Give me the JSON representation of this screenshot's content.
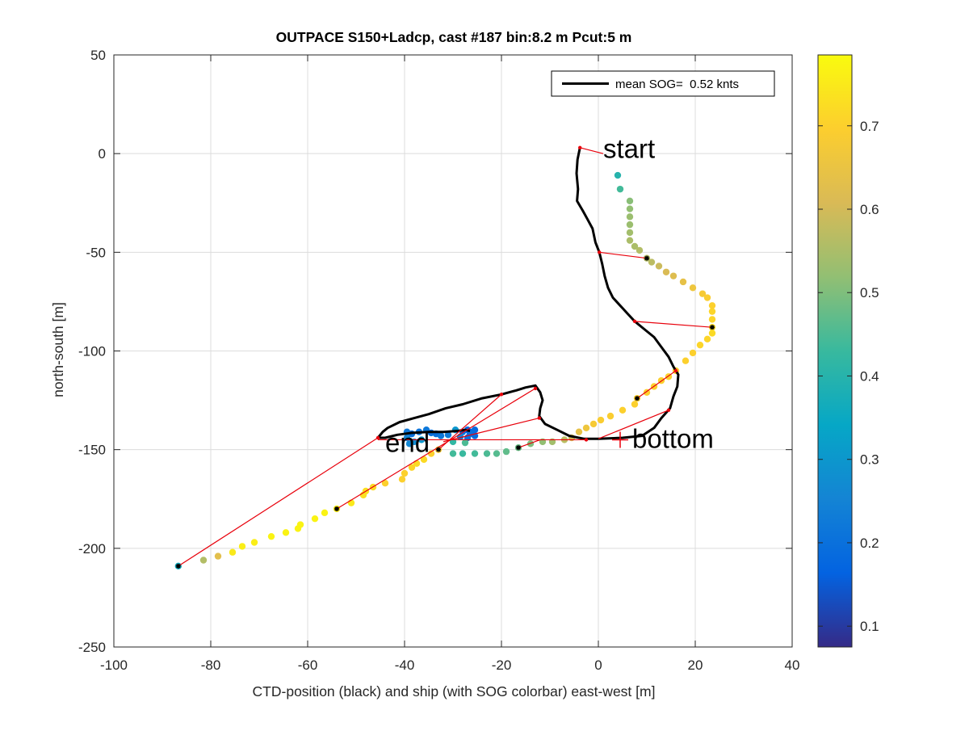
{
  "chart_data": {
    "type": "scatter",
    "title": "OUTPACE S150+Ladcp, cast #187 bin:8.2 m  Pcut:5 m",
    "xlabel": "CTD-position (black) and ship (with SOG colorbar) east-west [m]",
    "ylabel": "north-south [m]",
    "xlim": [
      -100,
      40
    ],
    "ylim": [
      -250,
      50
    ],
    "xticks": [
      -100,
      -80,
      -60,
      -40,
      -20,
      0,
      20,
      40
    ],
    "yticks": [
      -250,
      -200,
      -150,
      -100,
      -50,
      0,
      50
    ],
    "grid": true,
    "legend": {
      "position": "top-right",
      "entries": [
        "mean SOG=  0.52 knts"
      ]
    },
    "colorbar": {
      "limits": [
        0.075,
        0.785
      ],
      "ticks": [
        0.1,
        0.2,
        0.3,
        0.4,
        0.5,
        0.6,
        0.7
      ],
      "colormap": "parula"
    },
    "annotations": [
      {
        "text": "start",
        "x": 1,
        "y": 2
      },
      {
        "text": "end",
        "x": -44,
        "y": -147
      },
      {
        "text": "bottom",
        "x": 7,
        "y": -145
      }
    ],
    "bottom_marker": {
      "x": 4.5,
      "y": -145
    },
    "ctd_track": [
      [
        -3.8,
        3
      ],
      [
        -4.3,
        -3
      ],
      [
        -4.5,
        -10
      ],
      [
        -4.2,
        -18
      ],
      [
        -4.4,
        -24
      ],
      [
        -3.2,
        -29
      ],
      [
        -2.3,
        -33
      ],
      [
        -1.2,
        -38
      ],
      [
        -0.6,
        -45
      ],
      [
        0.2,
        -50
      ],
      [
        0.8,
        -56
      ],
      [
        1.3,
        -62
      ],
      [
        2.0,
        -68
      ],
      [
        3.0,
        -73
      ],
      [
        4.5,
        -77
      ],
      [
        6.0,
        -81
      ],
      [
        7.5,
        -85
      ],
      [
        9.5,
        -89
      ],
      [
        11.5,
        -93
      ],
      [
        13.0,
        -98
      ],
      [
        14.5,
        -103
      ],
      [
        15.5,
        -108
      ],
      [
        16.5,
        -112
      ],
      [
        16.3,
        -118
      ],
      [
        15.5,
        -123
      ],
      [
        14.8,
        -129
      ],
      [
        13.0,
        -134
      ],
      [
        11.5,
        -139
      ],
      [
        9.0,
        -143
      ],
      [
        5.0,
        -144
      ],
      [
        0,
        -144.5
      ],
      [
        -3.0,
        -144.5
      ],
      [
        -6.0,
        -143
      ],
      [
        -8.5,
        -140
      ],
      [
        -11.0,
        -137
      ],
      [
        -12.2,
        -133
      ],
      [
        -12.0,
        -129
      ],
      [
        -11.5,
        -125
      ],
      [
        -12.0,
        -121
      ],
      [
        -13.0,
        -117.5
      ],
      [
        -15.0,
        -118.5
      ],
      [
        -17.0,
        -120
      ],
      [
        -20.0,
        -122
      ],
      [
        -24.0,
        -124
      ],
      [
        -28.0,
        -127
      ],
      [
        -31.5,
        -129
      ],
      [
        -35.0,
        -132
      ],
      [
        -38.0,
        -134
      ],
      [
        -41.0,
        -136
      ],
      [
        -43.5,
        -139
      ],
      [
        -44.5,
        -141
      ],
      [
        -45.5,
        -144
      ],
      [
        -44.0,
        -144
      ],
      [
        -41.5,
        -142.5
      ],
      [
        -38.5,
        -141.5
      ],
      [
        -35.0,
        -141
      ],
      [
        -32.0,
        -141
      ],
      [
        -29.0,
        -140.5
      ],
      [
        -27.5,
        -140
      ],
      [
        -26.5,
        -140.5
      ]
    ],
    "ship_points": [
      [
        -86.7,
        -209,
        0.36
      ],
      [
        -81.5,
        -206,
        0.56
      ],
      [
        -78.5,
        -204,
        0.63
      ],
      [
        -75.5,
        -202,
        0.75
      ],
      [
        -73.5,
        -199,
        0.76
      ],
      [
        -71.0,
        -197,
        0.76
      ],
      [
        -67.5,
        -194,
        0.77
      ],
      [
        -64.5,
        -192,
        0.77
      ],
      [
        -62.0,
        -190,
        0.77
      ],
      [
        -61.5,
        -188,
        0.77
      ],
      [
        -58.5,
        -185,
        0.77
      ],
      [
        -56.5,
        -182,
        0.77
      ],
      [
        -54.0,
        -180,
        0.76
      ],
      [
        -51.0,
        -177,
        0.75
      ],
      [
        -48.5,
        -173,
        0.73
      ],
      [
        -48.0,
        -171,
        0.73
      ],
      [
        -46.5,
        -169,
        0.72
      ],
      [
        -44.0,
        -167,
        0.7
      ],
      [
        -40.5,
        -165,
        0.7
      ],
      [
        -40.0,
        -162,
        0.7
      ],
      [
        -38.5,
        -159,
        0.71
      ],
      [
        -37.5,
        -157,
        0.72
      ],
      [
        -36.0,
        -155,
        0.72
      ],
      [
        -34.5,
        -152,
        0.7
      ],
      [
        -33.0,
        -150,
        0.68
      ],
      [
        -30.0,
        -152,
        0.44
      ],
      [
        -28.0,
        -152,
        0.43
      ],
      [
        -25.5,
        -152,
        0.44
      ],
      [
        -23.0,
        -152,
        0.45
      ],
      [
        -21.0,
        -152,
        0.46
      ],
      [
        -19.0,
        -151,
        0.47
      ],
      [
        -16.5,
        -149,
        0.48
      ],
      [
        -14.0,
        -147,
        0.5
      ],
      [
        -11.5,
        -146,
        0.52
      ],
      [
        -9.5,
        -146,
        0.54
      ],
      [
        -7.0,
        -145,
        0.57
      ],
      [
        -5.5,
        -144,
        0.6
      ],
      [
        -4.0,
        -141,
        0.64
      ],
      [
        -2.5,
        -139,
        0.66
      ],
      [
        -1.0,
        -137,
        0.68
      ],
      [
        0.5,
        -135,
        0.69
      ],
      [
        2.5,
        -133,
        0.69
      ],
      [
        5.0,
        -130,
        0.7
      ],
      [
        7.5,
        -127,
        0.7
      ],
      [
        8.0,
        -124,
        0.7
      ],
      [
        10.0,
        -121,
        0.7
      ],
      [
        11.5,
        -118,
        0.7
      ],
      [
        13.0,
        -115,
        0.7
      ],
      [
        14.5,
        -113,
        0.7
      ],
      [
        16.0,
        -110,
        0.7
      ],
      [
        18.0,
        -105,
        0.7
      ],
      [
        19.5,
        -101,
        0.7
      ],
      [
        21.0,
        -97,
        0.71
      ],
      [
        22.5,
        -94,
        0.71
      ],
      [
        23.5,
        -91,
        0.72
      ],
      [
        23.5,
        -88,
        0.72
      ],
      [
        23.5,
        -84,
        0.71
      ],
      [
        23.5,
        -80,
        0.71
      ],
      [
        23.5,
        -77,
        0.7
      ],
      [
        22.5,
        -73,
        0.69
      ],
      [
        21.5,
        -71,
        0.68
      ],
      [
        19.5,
        -68,
        0.66
      ],
      [
        17.5,
        -65,
        0.64
      ],
      [
        15.5,
        -62,
        0.62
      ],
      [
        14.0,
        -60,
        0.61
      ],
      [
        12.5,
        -57,
        0.59
      ],
      [
        11.0,
        -55,
        0.57
      ],
      [
        10.0,
        -53,
        0.56
      ],
      [
        8.5,
        -49,
        0.56
      ],
      [
        7.5,
        -47,
        0.55
      ],
      [
        6.5,
        -44,
        0.55
      ],
      [
        6.5,
        -40,
        0.54
      ],
      [
        6.5,
        -36,
        0.53
      ],
      [
        6.5,
        -32,
        0.53
      ],
      [
        6.5,
        -28,
        0.52
      ],
      [
        6.5,
        -24,
        0.51
      ],
      [
        4.5,
        -18,
        0.44
      ],
      [
        4.0,
        -11,
        0.4
      ]
    ],
    "connector_lines": [
      [
        [
          -3.8,
          3
        ],
        [
          1.0,
          0
        ]
      ],
      [
        [
          0.2,
          -50
        ],
        [
          10.0,
          -53
        ]
      ],
      [
        [
          7.5,
          -85
        ],
        [
          23.5,
          -88
        ]
      ],
      [
        [
          16.0,
          -110
        ],
        [
          8.0,
          -124
        ]
      ],
      [
        [
          14.5,
          -130
        ],
        [
          0.0,
          -144.5
        ]
      ],
      [
        [
          -12.2,
          -134
        ],
        [
          -32.0,
          -146
        ]
      ],
      [
        [
          -13.0,
          -119
        ],
        [
          -54.0,
          -180
        ]
      ],
      [
        [
          -20.0,
          -122
        ],
        [
          -33.0,
          -150
        ]
      ],
      [
        [
          -45.5,
          -144
        ],
        [
          -86.7,
          -209
        ]
      ],
      [
        [
          -45.5,
          -145
        ],
        [
          -2.5,
          -145
        ]
      ],
      [
        [
          -16.5,
          -149
        ],
        [
          -12.0,
          -145
        ]
      ]
    ],
    "ctd_markers": [
      [
        -3.8,
        3
      ],
      [
        0.2,
        -50
      ],
      [
        7.5,
        -85
      ],
      [
        16.0,
        -110
      ],
      [
        14.5,
        -130
      ],
      [
        -12.2,
        -134
      ],
      [
        -13.0,
        -119
      ],
      [
        -20.0,
        -122
      ],
      [
        -45.5,
        -144
      ],
      [
        -2.5,
        -145
      ]
    ],
    "ship_markers": [
      [
        10.0,
        -53
      ],
      [
        23.5,
        -88
      ],
      [
        8.0,
        -124
      ],
      [
        -16.5,
        -149
      ],
      [
        -33.0,
        -150
      ],
      [
        -54.0,
        -180
      ],
      [
        -86.7,
        -209
      ]
    ]
  }
}
